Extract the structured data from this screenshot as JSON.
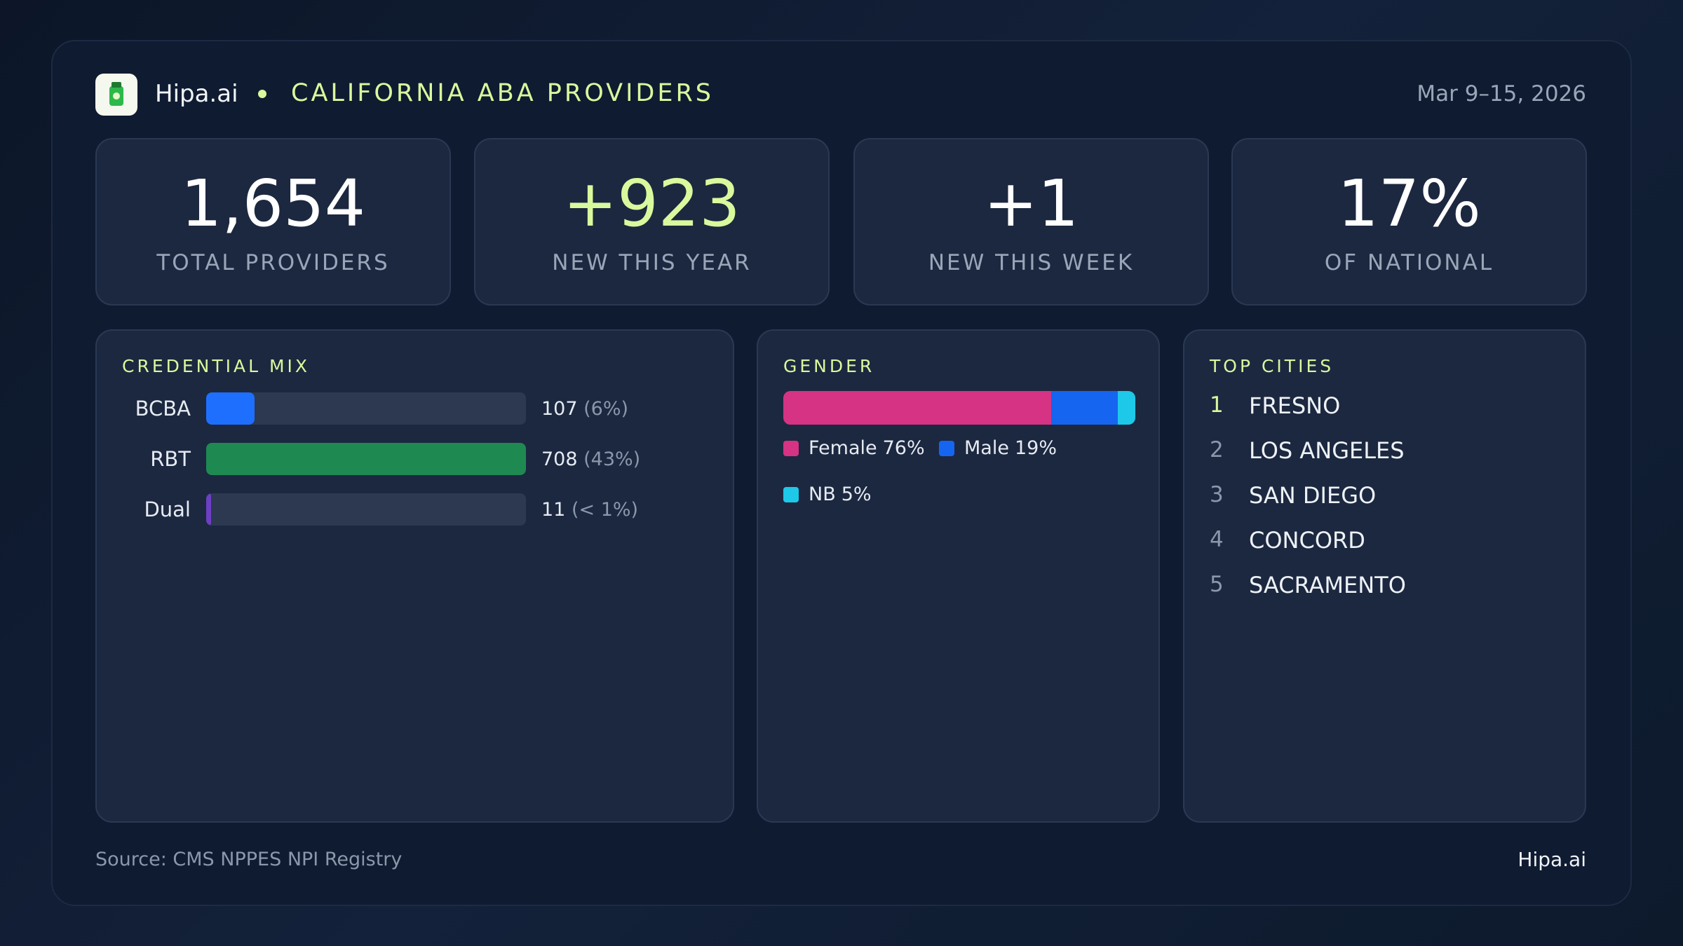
{
  "header": {
    "brand": "Hipa.ai",
    "title": "CALIFORNIA ABA PROVIDERS",
    "date": "Mar 9–15, 2026"
  },
  "kpis": [
    {
      "value": "1,654",
      "label": "TOTAL PROVIDERS",
      "color": "#ffffff"
    },
    {
      "value": "+923",
      "label": "NEW THIS YEAR",
      "color": "#d9f99d"
    },
    {
      "value": "+1",
      "label": "NEW THIS WEEK",
      "color": "#ffffff"
    },
    {
      "value": "17%",
      "label": "OF NATIONAL",
      "color": "#ffffff"
    }
  ],
  "credential_mix": {
    "title": "CREDENTIAL MIX",
    "categories": [
      "BCBA",
      "RBT",
      "Dual"
    ],
    "values": [
      107,
      708,
      11
    ],
    "share_labels": [
      "(6%)",
      "(43%)",
      "(< 1%)"
    ],
    "colors": [
      "#1f6fff",
      "#1e8a52",
      "#6d3fc4"
    ]
  },
  "gender": {
    "title": "GENDER",
    "series": [
      {
        "name": "Female",
        "value": 76,
        "value_label": "76%",
        "color": "#d63384"
      },
      {
        "name": "Male",
        "value": 19,
        "value_label": "19%",
        "color": "#1565f0"
      },
      {
        "name": "NB",
        "value": 5,
        "value_label": "5%",
        "color": "#1ec8e8"
      }
    ]
  },
  "top_cities": {
    "title": "TOP CITIES",
    "items": [
      {
        "rank": 1,
        "name": "FRESNO"
      },
      {
        "rank": 2,
        "name": "LOS ANGELES"
      },
      {
        "rank": 3,
        "name": "SAN DIEGO"
      },
      {
        "rank": 4,
        "name": "CONCORD"
      },
      {
        "rank": 5,
        "name": "SACRAMENTO"
      }
    ]
  },
  "footer": {
    "source": "Source: CMS NPPES NPI Registry",
    "brand": "Hipa.ai"
  }
}
